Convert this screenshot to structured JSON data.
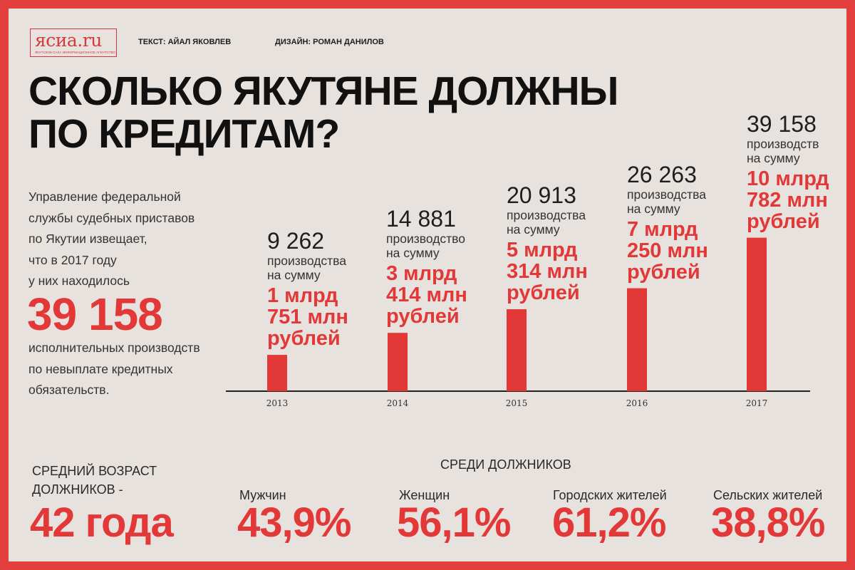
{
  "header": {
    "logo": "ясиа.ru",
    "logo_tagline": "ЯКУТСКОЕ-САХА ИНФОРМАЦИОННОЕ АГЕНТСТВО",
    "text_credit": "ТЕКСТ: АЙАЛ ЯКОВЛЕВ",
    "design_credit": "ДИЗАЙН: РОМАН ДАНИЛОВ"
  },
  "title_line1": "СКОЛЬКО ЯКУТЯНЕ ДОЛЖНЫ",
  "title_line2": "ПО КРЕДИТАМ?",
  "intro": {
    "line1": "Управление федеральной",
    "line2": "службы судебных приставов",
    "line3": "по Якутии извещает,",
    "line4": "что в 2017 году",
    "line5": "у них находилось",
    "big_number": "39 158",
    "line6": "исполнительных производств",
    "line7": "по невыплате кредитных",
    "line8": "обязательств."
  },
  "chart_data": {
    "type": "bar",
    "categories": [
      "2013",
      "2014",
      "2015",
      "2016",
      "2017"
    ],
    "values": [
      9262,
      14881,
      20913,
      26263,
      39158
    ],
    "callouts": [
      {
        "count": "9 262",
        "text1": "производства",
        "text2": "на сумму",
        "sum1": "1 млрд",
        "sum2": "751 млн",
        "sum3": "рублей"
      },
      {
        "count": "14 881",
        "text1": "производство",
        "text2": "на сумму",
        "sum1": "3 млрд",
        "sum2": "414 млн",
        "sum3": "рублей"
      },
      {
        "count": "20 913",
        "text1": "производства",
        "text2": "на сумму",
        "sum1": "5 млрд",
        "sum2": "314 млн",
        "sum3": "рублей"
      },
      {
        "count": "26 263",
        "text1": "производства",
        "text2": "на сумму",
        "sum1": "7 млрд",
        "sum2": "250 млн",
        "sum3": "рублей"
      },
      {
        "count": "39 158",
        "text1": "производств",
        "text2": "на сумму",
        "sum1": "10 млрд",
        "sum2": "782 млн",
        "sum3": "рублей"
      }
    ],
    "bar_color": "#e23838"
  },
  "stats": {
    "age_label_line1": "СРЕДНИЙ ВОЗРАСТ",
    "age_label_line2": "ДОЛЖНИКОВ -",
    "age_value": "42 года",
    "among_title": "СРЕДИ ДОЛЖНИКОВ",
    "items": [
      {
        "label": "Мужчин",
        "value": "43,9%"
      },
      {
        "label": "Женщин",
        "value": "56,1%"
      },
      {
        "label": "Городских жителей",
        "value": "61,2%"
      },
      {
        "label": "Сельских жителей",
        "value": "38,8%"
      }
    ]
  },
  "colors": {
    "accent": "#e23838",
    "background": "#e7e2dd",
    "frame": "#e43f3f"
  }
}
